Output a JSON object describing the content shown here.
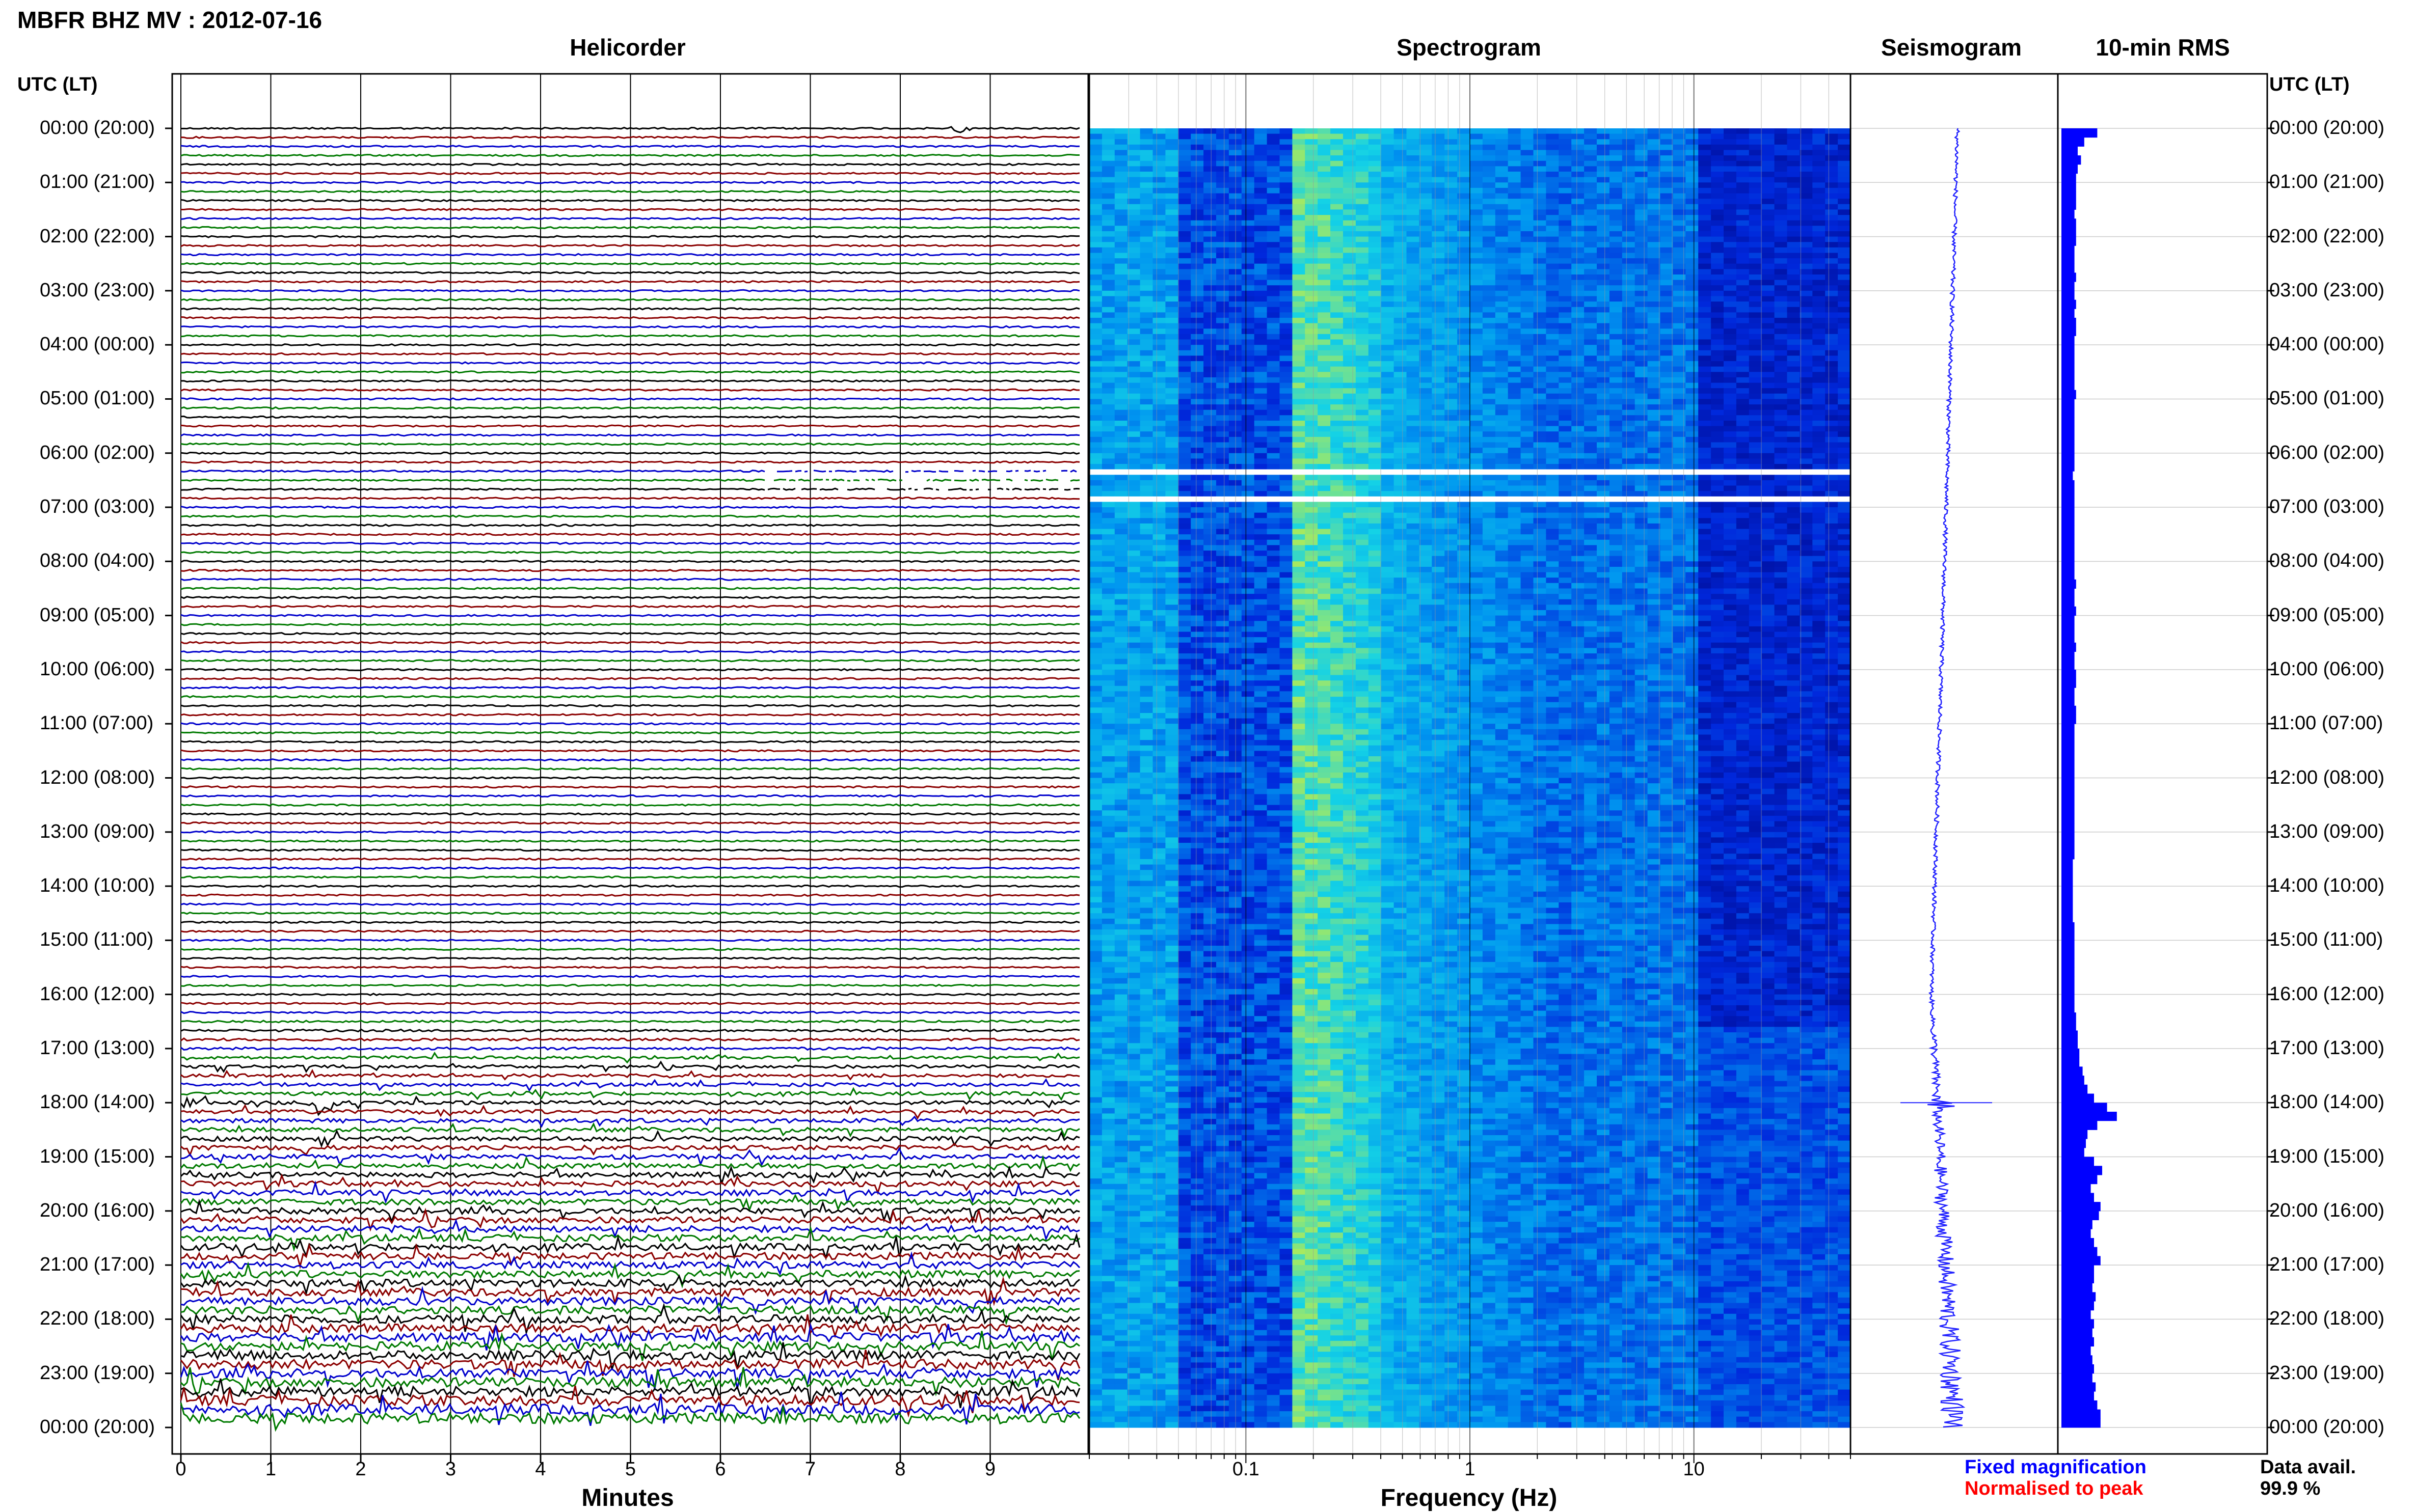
{
  "figure_title": "MBFR BHZ MV : 2012-07-16",
  "panels": {
    "helicorder": "Helicorder",
    "spectrogram": "Spectrogram",
    "seismogram": "Seismogram",
    "rms": "10-min RMS"
  },
  "time_axis_header": "UTC (LT)",
  "time_labels": [
    "00:00 (20:00)",
    "01:00 (21:00)",
    "02:00 (22:00)",
    "03:00 (23:00)",
    "04:00 (00:00)",
    "05:00 (01:00)",
    "06:00 (02:00)",
    "07:00 (03:00)",
    "08:00 (04:00)",
    "09:00 (05:00)",
    "10:00 (06:00)",
    "11:00 (07:00)",
    "12:00 (08:00)",
    "13:00 (09:00)",
    "14:00 (10:00)",
    "15:00 (11:00)",
    "16:00 (12:00)",
    "17:00 (13:00)",
    "18:00 (14:00)",
    "19:00 (15:00)",
    "20:00 (16:00)",
    "21:00 (17:00)",
    "22:00 (18:00)",
    "23:00 (19:00)",
    "00:00 (20:00)"
  ],
  "minutes_axis": {
    "label": "Minutes",
    "ticks": [
      "0",
      "1",
      "2",
      "3",
      "4",
      "5",
      "6",
      "7",
      "8",
      "9"
    ]
  },
  "frequency_axis": {
    "label": "Frequency (Hz)",
    "ticks": [
      "0.1",
      "1",
      "10"
    ]
  },
  "legend": {
    "fixed": "Fixed magnification",
    "normalised": "Normalised to peak"
  },
  "data_avail": {
    "label": "Data avail.",
    "value": "99.9 %"
  },
  "colors": {
    "trace_cycle": [
      "#000000",
      "#8b0000",
      "#0000cc",
      "#007a00"
    ],
    "fixed": "#0000ff",
    "normalised": "#ff0000",
    "rms_bar": "#0000ff",
    "seismogram": "#2222ff"
  },
  "chart_data": [
    {
      "type": "line",
      "name": "helicorder",
      "x_unit": "minutes",
      "xlim": [
        0,
        10
      ],
      "y_unit": "hours UTC",
      "ylim": [
        0,
        24
      ],
      "traces_per_hour": 6,
      "trace_count": 144,
      "gaps_hours": [
        6.25,
        6.75
      ],
      "events": [
        {
          "hour": 0.0,
          "minute": 8.7,
          "amplitude": 3
        },
        {
          "hour": 18.0,
          "minute": 1.6,
          "amplitude": 9
        },
        {
          "hour": 18.0,
          "minute": 0.1,
          "amplitude": 4
        }
      ]
    },
    {
      "type": "heatmap",
      "name": "spectrogram",
      "x_scale": "log",
      "xlim": [
        0.02,
        50
      ],
      "ylim": [
        0,
        24
      ],
      "gap_hours": [
        6.25,
        6.75
      ],
      "peak_band_hz": [
        0.18,
        0.35
      ]
    },
    {
      "type": "line",
      "name": "seismogram",
      "ylim": [
        0,
        24
      ],
      "peak_hour": 18.0
    },
    {
      "type": "bar",
      "name": "rms_10min",
      "ylim": [
        0,
        24
      ],
      "bin_minutes": 10,
      "values": [
        22,
        14,
        10,
        12,
        10,
        9,
        9,
        9,
        9,
        8,
        9,
        9,
        9,
        8,
        8,
        8,
        9,
        8,
        8,
        9,
        8,
        9,
        9,
        8,
        8,
        8,
        8,
        8,
        8,
        9,
        8,
        8,
        8,
        8,
        8,
        8,
        8,
        8,
        7,
        8,
        8,
        8,
        8,
        8,
        8,
        8,
        8,
        8,
        8,
        8,
        9,
        8,
        8,
        9,
        8,
        8,
        8,
        9,
        8,
        8,
        9,
        9,
        8,
        8,
        9,
        9,
        8,
        8,
        8,
        8,
        8,
        8,
        8,
        8,
        8,
        8,
        8,
        8,
        8,
        8,
        8,
        7,
        7,
        7,
        7,
        7,
        7,
        7,
        8,
        8,
        8,
        8,
        8,
        8,
        8,
        8,
        8,
        8,
        9,
        9,
        10,
        10,
        11,
        11,
        13,
        14,
        16,
        20,
        28,
        34,
        22,
        16,
        15,
        14,
        20,
        25,
        22,
        18,
        20,
        24,
        23,
        19,
        18,
        20,
        22,
        24,
        20,
        20,
        19,
        21,
        20,
        18,
        20,
        19,
        20,
        18,
        19,
        20,
        19,
        21,
        20,
        22,
        24,
        24
      ]
    }
  ]
}
